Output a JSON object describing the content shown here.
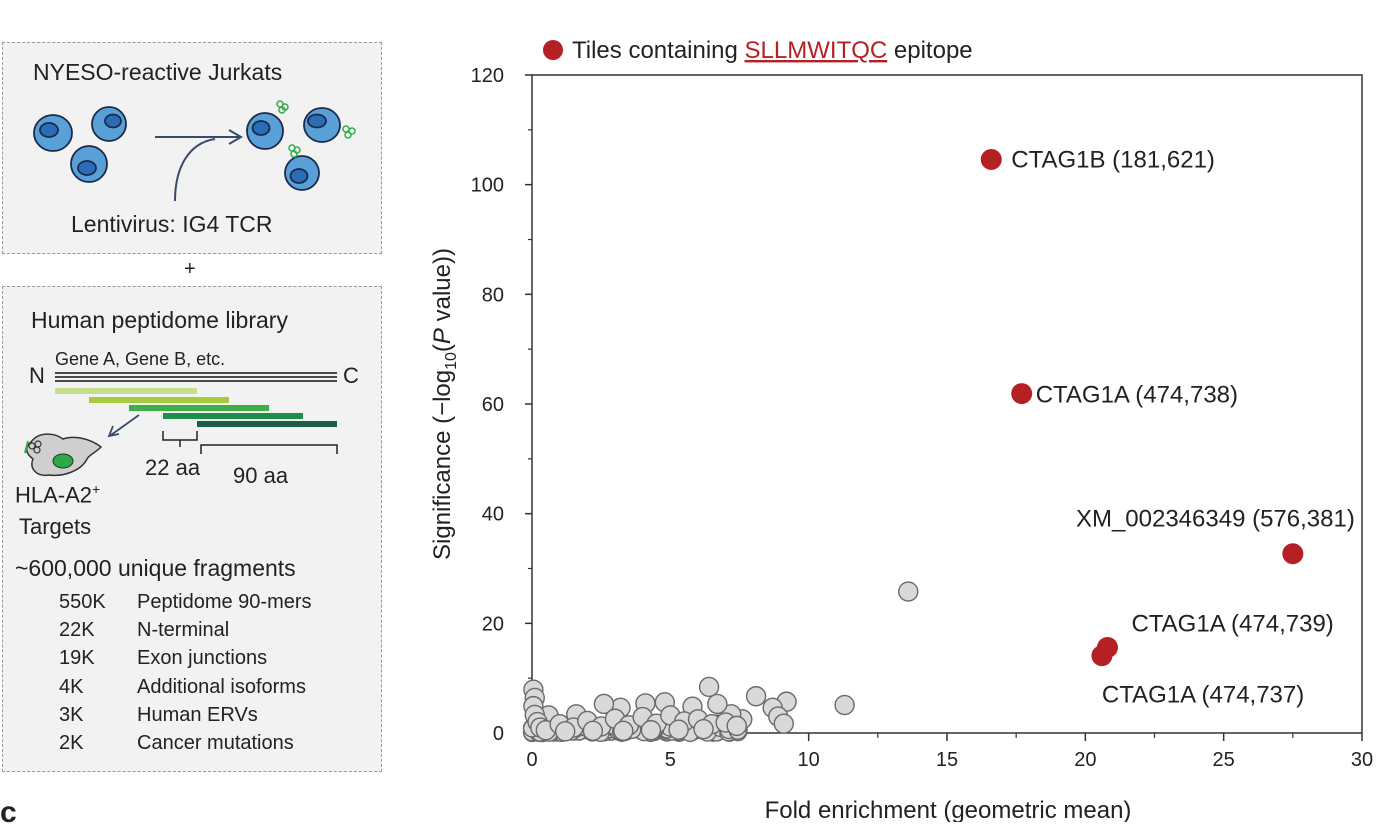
{
  "panel_top": {
    "title": "NYESO-reactive Jurkats",
    "caption": "Lentivirus: IG4 TCR"
  },
  "plus": "+",
  "panel_bottom": {
    "title": "Human peptidome library",
    "gene_label": "Gene A, Gene B, etc.",
    "n_label": "N",
    "c_label": "C",
    "len_short": "22 aa",
    "len_long": "90 aa",
    "targets_main": "HLA-A2",
    "targets_sup": "+",
    "targets_line2": "Targets",
    "fragments_heading": "~600,000 unique fragments",
    "fragments": [
      {
        "count": "550K",
        "label": "Peptidome 90-mers"
      },
      {
        "count": "22K",
        "label": "N-terminal"
      },
      {
        "count": "19K",
        "label": "Exon junctions"
      },
      {
        "count": "4K",
        "label": "Additional isoforms"
      },
      {
        "count": "3K",
        "label": "Human ERVs"
      },
      {
        "count": "2K",
        "label": "Cancer mutations"
      }
    ]
  },
  "panel_letter": "c",
  "chart_data": {
    "type": "scatter",
    "legend": {
      "prefix": "Tiles containing ",
      "epitope": "SLLMWITQC",
      "suffix": " epitope",
      "placement": "top-left"
    },
    "xlabel": "Fold enrichment (geometric mean)",
    "ylabel": {
      "a": "Significance (−log",
      "sub": "10",
      "b": "(",
      "italic": "P",
      "c": " value))"
    },
    "xlim": [
      0,
      30
    ],
    "ylim": [
      0,
      120
    ],
    "xticks": [
      "0",
      "5",
      "10",
      "15",
      "20",
      "25",
      "30"
    ],
    "yticks": [
      "0",
      "20",
      "40",
      "60",
      "80",
      "100",
      "120"
    ],
    "grid": false,
    "highlight_color": "#b52025",
    "background_color": "#d9d9d9",
    "series": [
      {
        "name": "Tiles containing SLLMWITQC epitope",
        "points": [
          {
            "x": 16.6,
            "y": 104.6,
            "label": "CTAG1B (181,621)"
          },
          {
            "x": 17.7,
            "y": 61.9,
            "label": "CTAG1A (474,738)"
          },
          {
            "x": 27.5,
            "y": 32.7,
            "label": "XM_002346349 (576,381)"
          },
          {
            "x": 20.8,
            "y": 15.6,
            "label": "CTAG1A (474,739)"
          },
          {
            "x": 20.6,
            "y": 14.1,
            "label": "CTAG1A (474,737)"
          }
        ]
      },
      {
        "points": [
          {
            "x": 13.6,
            "y": 25.8
          },
          {
            "x": 11.3,
            "y": 5.1
          },
          {
            "x": 6.4,
            "y": 8.4
          },
          {
            "x": 8.1,
            "y": 6.7
          },
          {
            "x": 9.2,
            "y": 5.7
          },
          {
            "x": 8.7,
            "y": 4.6
          },
          {
            "x": 8.9,
            "y": 3.0
          },
          {
            "x": 9.1,
            "y": 1.7
          },
          {
            "x": 7.6,
            "y": 2.5
          },
          {
            "x": 7.2,
            "y": 3.4
          },
          {
            "x": 6.7,
            "y": 5.3
          },
          {
            "x": 5.8,
            "y": 4.8
          },
          {
            "x": 4.8,
            "y": 5.6
          },
          {
            "x": 4.1,
            "y": 5.4
          },
          {
            "x": 3.2,
            "y": 4.6
          },
          {
            "x": 2.6,
            "y": 5.3
          },
          {
            "x": 1.6,
            "y": 3.4
          },
          {
            "x": 0.6,
            "y": 3.2
          },
          {
            "x": 0.05,
            "y": 7.9
          },
          {
            "x": 0.1,
            "y": 6.4
          },
          {
            "x": 0.05,
            "y": 4.9
          },
          {
            "x": 0.1,
            "y": 3.3
          },
          {
            "x": 0.2,
            "y": 2.0
          },
          {
            "x": 0.3,
            "y": 1.0
          },
          {
            "x": 0.5,
            "y": 0.5
          },
          {
            "x": 1.0,
            "y": 1.6
          },
          {
            "x": 1.5,
            "y": 1.0
          },
          {
            "x": 2.0,
            "y": 2.2
          },
          {
            "x": 2.5,
            "y": 1.2
          },
          {
            "x": 3.0,
            "y": 2.6
          },
          {
            "x": 3.5,
            "y": 1.4
          },
          {
            "x": 4.0,
            "y": 2.9
          },
          {
            "x": 4.5,
            "y": 1.7
          },
          {
            "x": 5.0,
            "y": 3.2
          },
          {
            "x": 5.5,
            "y": 2.1
          },
          {
            "x": 6.0,
            "y": 2.5
          },
          {
            "x": 6.5,
            "y": 1.6
          },
          {
            "x": 7.0,
            "y": 1.9
          },
          {
            "x": 7.4,
            "y": 1.3
          },
          {
            "x": 1.2,
            "y": 0.3
          },
          {
            "x": 2.2,
            "y": 0.4
          },
          {
            "x": 3.3,
            "y": 0.4
          },
          {
            "x": 4.3,
            "y": 0.5
          },
          {
            "x": 5.3,
            "y": 0.6
          },
          {
            "x": 6.2,
            "y": 0.7
          }
        ]
      }
    ],
    "dense_cluster": {
      "x_max": 7.5,
      "y_max": 1.0
    }
  }
}
